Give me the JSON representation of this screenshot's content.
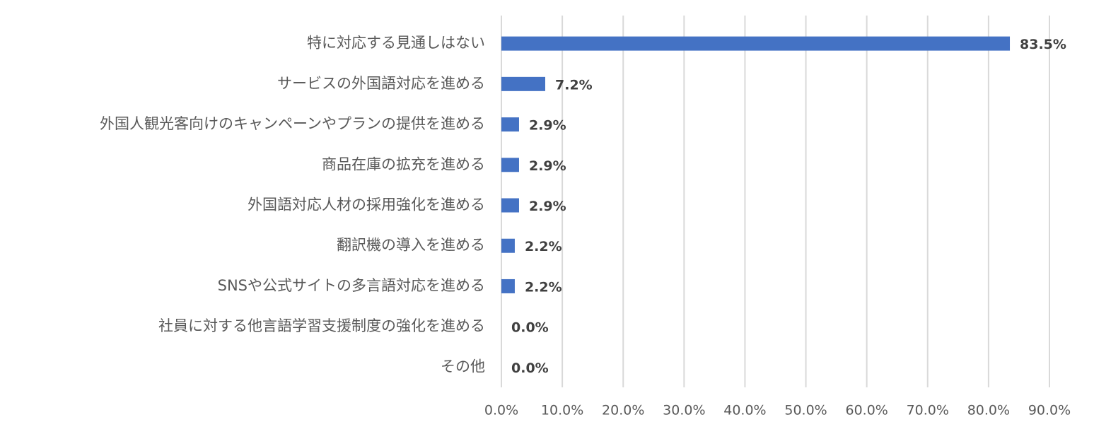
{
  "chart_data": {
    "type": "hbar",
    "categories": [
      "特に対応する見通しはない",
      "サービスの外国語対応を進める",
      "外国人観光客向けのキャンペーンやプランの提供を進める",
      "商品在庫の拡充を進める",
      "外国語対応人材の採用強化を進める",
      "翻訳機の導入を進める",
      "SNSや公式サイトの多言語対応を進める",
      "社員に対する他言語学習支援制度の強化を進める",
      "その他"
    ],
    "values": [
      83.5,
      7.2,
      2.9,
      2.9,
      2.9,
      2.2,
      2.2,
      0,
      0
    ],
    "value_labels": [
      "83.5%",
      "7.2%",
      "2.9%",
      "2.9%",
      "2.9%",
      "2.2%",
      "2.2%",
      "0.0%",
      "0.0%"
    ],
    "color": "#4472c4",
    "xlim": [
      0,
      90
    ],
    "xticks": [
      {
        "value": 0,
        "label": "0.0%"
      },
      {
        "value": 10,
        "label": "10.0%"
      },
      {
        "value": 20,
        "label": "20.0%"
      },
      {
        "value": 30,
        "label": "30.0%"
      },
      {
        "value": 40,
        "label": "40.0%"
      },
      {
        "value": 50,
        "label": "50.0%"
      },
      {
        "value": 60,
        "label": "60.0%"
      },
      {
        "value": 70,
        "label": "70.0%"
      },
      {
        "value": 80,
        "label": "80.0%"
      },
      {
        "value": 90,
        "label": "90.0%"
      }
    ],
    "grid": true
  }
}
